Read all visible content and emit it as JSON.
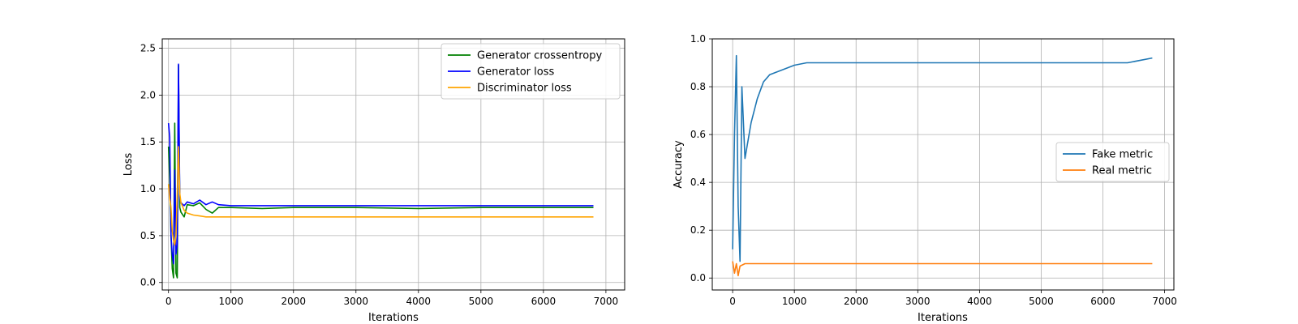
{
  "chart_data": [
    {
      "type": "line",
      "title": "",
      "xlabel": "Iterations",
      "ylabel": "Loss",
      "xlim": [
        -100,
        7300
      ],
      "ylim": [
        -0.08,
        2.6
      ],
      "xticks": [
        0,
        1000,
        2000,
        3000,
        4000,
        5000,
        6000,
        7000
      ],
      "yticks": [
        0.0,
        0.5,
        1.0,
        1.5,
        2.0,
        2.5
      ],
      "xtick_labels": [
        "0",
        "1000",
        "2000",
        "3000",
        "4000",
        "5000",
        "6000",
        "7000"
      ],
      "ytick_labels": [
        "0.0",
        "0.5",
        "1.0",
        "1.5",
        "2.0",
        "2.5"
      ],
      "grid": true,
      "legend_position": "upper right",
      "series": [
        {
          "name": "Generator crossentropy",
          "color": "#008000",
          "x": [
            0,
            20,
            40,
            60,
            80,
            100,
            120,
            140,
            160,
            180,
            200,
            250,
            300,
            400,
            500,
            600,
            700,
            800,
            1000,
            1500,
            2000,
            3000,
            4000,
            5000,
            6000,
            6800
          ],
          "values": [
            1.45,
            1.1,
            0.5,
            0.15,
            0.05,
            1.7,
            0.1,
            0.05,
            2.32,
            0.8,
            0.75,
            0.7,
            0.83,
            0.82,
            0.85,
            0.78,
            0.74,
            0.8,
            0.8,
            0.79,
            0.8,
            0.8,
            0.79,
            0.8,
            0.8,
            0.8
          ]
        },
        {
          "name": "Generator loss",
          "color": "#0000ff",
          "x": [
            0,
            20,
            40,
            60,
            80,
            100,
            120,
            140,
            160,
            180,
            200,
            250,
            300,
            400,
            500,
            600,
            700,
            800,
            1000,
            1500,
            2000,
            3000,
            4000,
            5000,
            6000,
            6800
          ],
          "values": [
            1.7,
            1.55,
            0.5,
            0.3,
            0.2,
            1.2,
            0.3,
            0.4,
            2.33,
            0.9,
            0.85,
            0.82,
            0.86,
            0.84,
            0.88,
            0.83,
            0.86,
            0.83,
            0.82,
            0.82,
            0.82,
            0.82,
            0.82,
            0.82,
            0.82,
            0.82
          ]
        },
        {
          "name": "Discriminator loss",
          "color": "#ffa500",
          "x": [
            0,
            20,
            40,
            60,
            80,
            100,
            120,
            140,
            160,
            180,
            200,
            250,
            300,
            400,
            500,
            600,
            800,
            1000,
            1500,
            2000,
            3000,
            4000,
            5000,
            6000,
            6800
          ],
          "values": [
            1.05,
            0.9,
            0.8,
            0.55,
            0.45,
            0.4,
            0.5,
            0.95,
            1.45,
            0.95,
            0.85,
            0.77,
            0.74,
            0.72,
            0.71,
            0.7,
            0.7,
            0.7,
            0.7,
            0.7,
            0.7,
            0.7,
            0.7,
            0.7,
            0.7
          ]
        }
      ]
    },
    {
      "type": "line",
      "title": "",
      "xlabel": "Iterations",
      "ylabel": "Accuracy",
      "xlim": [
        -330,
        7150
      ],
      "ylim": [
        -0.05,
        1.0
      ],
      "xticks": [
        0,
        1000,
        2000,
        3000,
        4000,
        5000,
        6000,
        7000
      ],
      "yticks": [
        0.0,
        0.2,
        0.4,
        0.6,
        0.8,
        1.0
      ],
      "xtick_labels": [
        "0",
        "1000",
        "2000",
        "3000",
        "4000",
        "5000",
        "6000",
        "7000"
      ],
      "ytick_labels": [
        "0.0",
        "0.2",
        "0.4",
        "0.6",
        "0.8",
        "1.0"
      ],
      "grid": true,
      "legend_position": "center right",
      "series": [
        {
          "name": "Fake metric",
          "color": "#1f77b4",
          "x": [
            0,
            30,
            60,
            90,
            120,
            150,
            200,
            300,
            400,
            500,
            600,
            800,
            1000,
            1200,
            1500,
            2000,
            2500,
            3000,
            3500,
            4000,
            4500,
            5000,
            5500,
            6000,
            6400,
            6800
          ],
          "values": [
            0.12,
            0.6,
            0.93,
            0.3,
            0.07,
            0.8,
            0.5,
            0.65,
            0.75,
            0.82,
            0.85,
            0.87,
            0.89,
            0.9,
            0.9,
            0.9,
            0.9,
            0.9,
            0.9,
            0.9,
            0.9,
            0.9,
            0.9,
            0.9,
            0.9,
            0.92
          ]
        },
        {
          "name": "Real metric",
          "color": "#ff7f0e",
          "x": [
            0,
            30,
            60,
            90,
            120,
            200,
            500,
            1000,
            2000,
            3000,
            4000,
            5000,
            6000,
            6800
          ],
          "values": [
            0.07,
            0.02,
            0.06,
            0.01,
            0.05,
            0.06,
            0.06,
            0.06,
            0.06,
            0.06,
            0.06,
            0.06,
            0.06,
            0.06
          ]
        }
      ]
    }
  ]
}
